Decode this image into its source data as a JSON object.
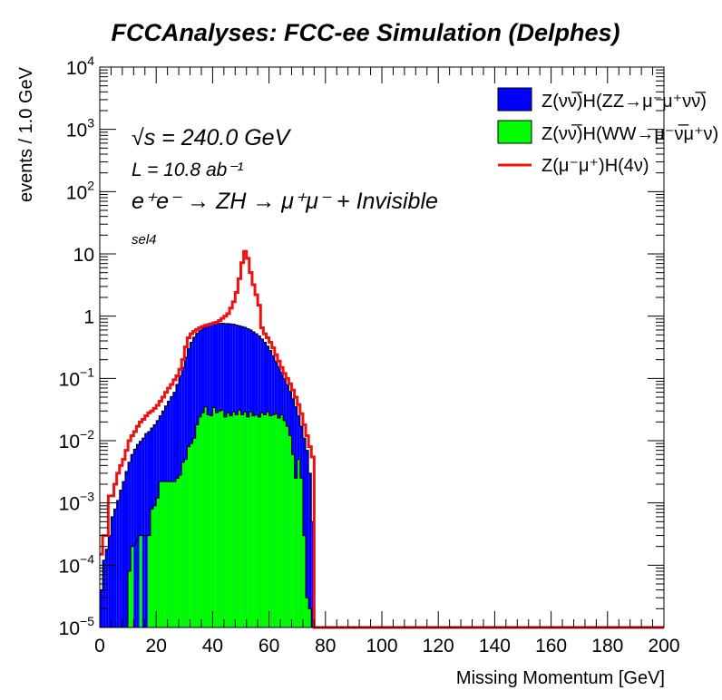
{
  "header": {
    "title": "FCCAnalyses: FCC-ee Simulation (Delphes)"
  },
  "annotations": {
    "sqrt_s": "√s = 240.0 GeV",
    "lumi": "L = 10.8 ab⁻¹",
    "process": "e⁺e⁻ → ZH → μ⁺μ⁻ + Invisible",
    "selection": "sel4"
  },
  "colors": {
    "zz_fill": "#0000ff",
    "ww_fill": "#00ff00",
    "signal_line": "#ee1111"
  },
  "chart_data": {
    "type": "histogram",
    "title": "FCCAnalyses: FCC-ee Simulation (Delphes)",
    "xlabel": "Missing Momentum [GeV]",
    "ylabel": "events / 1.0 GeV",
    "xlim": [
      0,
      200
    ],
    "ylim": [
      1e-05,
      10000
    ],
    "yscale": "log",
    "bin_width": 1.0,
    "x_ticks": [
      "0",
      "20",
      "40",
      "60",
      "80",
      "100",
      "120",
      "140",
      "160",
      "180",
      "200"
    ],
    "y_ticks": [
      {
        "value": 1e-05,
        "base": "10",
        "exp": "−5"
      },
      {
        "value": 0.0001,
        "base": "10",
        "exp": "−4"
      },
      {
        "value": 0.001,
        "base": "10",
        "exp": "−3"
      },
      {
        "value": 0.01,
        "base": "10",
        "exp": "−2"
      },
      {
        "value": 0.1,
        "base": "10",
        "exp": "−1"
      },
      {
        "value": 1,
        "base": "1",
        "exp": ""
      },
      {
        "value": 10,
        "base": "10",
        "exp": ""
      },
      {
        "value": 100,
        "base": "10",
        "exp": "2"
      },
      {
        "value": 1000,
        "base": "10",
        "exp": "3"
      },
      {
        "value": 10000,
        "base": "10",
        "exp": "4"
      }
    ],
    "legend_position": "top-right",
    "legend": [
      {
        "label": "Z(νν̅)H(ZZ→μ⁻μ⁺νν̅)",
        "style": "fill",
        "color": "#0000ff"
      },
      {
        "label": "Z(νν̅)H(WW→μ⁻ν̅μ⁺ν)",
        "style": "fill",
        "color": "#00ff00"
      },
      {
        "label": "Z(μ⁻μ⁺)H(4ν)",
        "style": "line",
        "color": "#ee1111"
      }
    ],
    "series": [
      {
        "name": "Z(νν̅)H(ZZ→μ⁻μ⁺νν̅)",
        "kind": "stack-filled",
        "bins": [
          [
            1,
            4e-05
          ],
          [
            2,
            0.00012
          ],
          [
            3,
            0.00018
          ],
          [
            4,
            0.0003
          ],
          [
            5,
            0.0006
          ],
          [
            6,
            0.0008
          ],
          [
            7,
            0.0011
          ],
          [
            8,
            0.0016
          ],
          [
            9,
            0.0022
          ],
          [
            10,
            0.0032
          ],
          [
            11,
            0.0045
          ],
          [
            12,
            0.006
          ],
          [
            13,
            0.0073
          ],
          [
            14,
            0.0087
          ],
          [
            15,
            0.0098
          ],
          [
            16,
            0.011
          ],
          [
            17,
            0.013
          ],
          [
            18,
            0.014
          ],
          [
            19,
            0.016
          ],
          [
            20,
            0.018
          ],
          [
            21,
            0.021
          ],
          [
            22,
            0.025
          ],
          [
            23,
            0.03
          ],
          [
            24,
            0.036
          ],
          [
            25,
            0.043
          ],
          [
            26,
            0.051
          ],
          [
            27,
            0.06
          ],
          [
            28,
            0.08
          ],
          [
            29,
            0.11
          ],
          [
            30,
            0.15
          ],
          [
            31,
            0.22
          ],
          [
            32,
            0.3
          ],
          [
            33,
            0.38
          ],
          [
            34,
            0.46
          ],
          [
            35,
            0.53
          ],
          [
            36,
            0.59
          ],
          [
            37,
            0.64
          ],
          [
            38,
            0.68
          ],
          [
            39,
            0.72
          ],
          [
            40,
            0.74
          ],
          [
            41,
            0.76
          ],
          [
            42,
            0.77
          ],
          [
            43,
            0.77
          ],
          [
            44,
            0.77
          ],
          [
            45,
            0.76
          ],
          [
            46,
            0.76
          ],
          [
            47,
            0.75
          ],
          [
            48,
            0.74
          ],
          [
            49,
            0.72
          ],
          [
            50,
            0.7
          ],
          [
            51,
            0.68
          ],
          [
            52,
            0.66
          ],
          [
            53,
            0.63
          ],
          [
            54,
            0.6
          ],
          [
            55,
            0.56
          ],
          [
            56,
            0.52
          ],
          [
            57,
            0.48
          ],
          [
            58,
            0.43
          ],
          [
            59,
            0.38
          ],
          [
            60,
            0.33
          ],
          [
            61,
            0.28
          ],
          [
            62,
            0.23
          ],
          [
            63,
            0.19
          ],
          [
            64,
            0.155
          ],
          [
            65,
            0.125
          ],
          [
            66,
            0.1
          ],
          [
            67,
            0.08
          ],
          [
            68,
            0.062
          ],
          [
            69,
            0.047
          ],
          [
            70,
            0.035
          ],
          [
            71,
            0.025
          ],
          [
            72,
            0.017
          ],
          [
            73,
            0.011
          ],
          [
            74,
            0.007
          ],
          [
            75,
            0.003
          ],
          [
            76,
            0.0005
          ]
        ]
      },
      {
        "name": "Z(νν̅)H(WW→μ⁻ν̅μ⁺ν)",
        "kind": "stack-filled",
        "bins": [
          [
            11,
            8e-05
          ],
          [
            12,
            0.0002
          ],
          [
            15,
            0.0003
          ],
          [
            18,
            0.0003
          ],
          [
            19,
            0.0008
          ],
          [
            20,
            0.0009
          ],
          [
            21,
            0.0012
          ],
          [
            22,
            0.0022
          ],
          [
            23,
            0.0022
          ],
          [
            24,
            0.0022
          ],
          [
            25,
            0.0022
          ],
          [
            26,
            0.0022
          ],
          [
            27,
            0.0022
          ],
          [
            28,
            0.0025
          ],
          [
            29,
            0.0028
          ],
          [
            30,
            0.0045
          ],
          [
            31,
            0.005
          ],
          [
            32,
            0.008
          ],
          [
            33,
            0.009
          ],
          [
            34,
            0.011
          ],
          [
            35,
            0.018
          ],
          [
            36,
            0.024
          ],
          [
            37,
            0.028
          ],
          [
            38,
            0.035
          ],
          [
            39,
            0.026
          ],
          [
            40,
            0.025
          ],
          [
            41,
            0.034
          ],
          [
            42,
            0.028
          ],
          [
            43,
            0.03
          ],
          [
            44,
            0.031
          ],
          [
            45,
            0.024
          ],
          [
            46,
            0.028
          ],
          [
            47,
            0.025
          ],
          [
            48,
            0.029
          ],
          [
            49,
            0.026
          ],
          [
            50,
            0.031
          ],
          [
            51,
            0.026
          ],
          [
            52,
            0.029
          ],
          [
            53,
            0.024
          ],
          [
            54,
            0.029
          ],
          [
            55,
            0.025
          ],
          [
            56,
            0.026
          ],
          [
            57,
            0.024
          ],
          [
            58,
            0.028
          ],
          [
            59,
            0.026
          ],
          [
            60,
            0.029
          ],
          [
            61,
            0.025
          ],
          [
            62,
            0.026
          ],
          [
            63,
            0.027
          ],
          [
            64,
            0.023
          ],
          [
            65,
            0.026
          ],
          [
            66,
            0.021
          ],
          [
            67,
            0.017
          ],
          [
            68,
            0.012
          ],
          [
            69,
            0.006
          ],
          [
            70,
            0.0025
          ],
          [
            71,
            0.005
          ],
          [
            72,
            0.0025
          ],
          [
            73,
            0.0003
          ],
          [
            74,
            3e-05
          ],
          [
            75,
            2e-05
          ]
        ]
      },
      {
        "name": "Z(μ⁻μ⁺)H(4ν)",
        "kind": "line",
        "bins": [
          [
            1,
            0.00015
          ],
          [
            2,
            0.0003
          ],
          [
            3,
            0.0003
          ],
          [
            4,
            0.0013
          ],
          [
            5,
            0.0013
          ],
          [
            6,
            0.002
          ],
          [
            7,
            0.003
          ],
          [
            8,
            0.004
          ],
          [
            9,
            0.005
          ],
          [
            10,
            0.007
          ],
          [
            11,
            0.01
          ],
          [
            12,
            0.012
          ],
          [
            13,
            0.014
          ],
          [
            14,
            0.017
          ],
          [
            15,
            0.02
          ],
          [
            16,
            0.022
          ],
          [
            17,
            0.025
          ],
          [
            18,
            0.028
          ],
          [
            19,
            0.03
          ],
          [
            20,
            0.033
          ],
          [
            21,
            0.037
          ],
          [
            22,
            0.043
          ],
          [
            23,
            0.05
          ],
          [
            24,
            0.06
          ],
          [
            25,
            0.07
          ],
          [
            26,
            0.08
          ],
          [
            27,
            0.095
          ],
          [
            28,
            0.11
          ],
          [
            29,
            0.14
          ],
          [
            30,
            0.2
          ],
          [
            31,
            0.32
          ],
          [
            32,
            0.45
          ],
          [
            33,
            0.52
          ],
          [
            34,
            0.57
          ],
          [
            35,
            0.61
          ],
          [
            36,
            0.65
          ],
          [
            37,
            0.68
          ],
          [
            38,
            0.71
          ],
          [
            39,
            0.73
          ],
          [
            40,
            0.75
          ],
          [
            41,
            0.78
          ],
          [
            42,
            0.8
          ],
          [
            43,
            0.85
          ],
          [
            44,
            0.92
          ],
          [
            45,
            1.0
          ],
          [
            46,
            1.1
          ],
          [
            47,
            1.35
          ],
          [
            48,
            1.7
          ],
          [
            49,
            2.4
          ],
          [
            50,
            4.0
          ],
          [
            51,
            7.2
          ],
          [
            52,
            11.0
          ],
          [
            53,
            8.5
          ],
          [
            54,
            5.0
          ],
          [
            55,
            3.2
          ],
          [
            56,
            2.2
          ],
          [
            57,
            1.5
          ],
          [
            58,
            0.65
          ],
          [
            59,
            0.52
          ],
          [
            60,
            0.45
          ],
          [
            61,
            0.38
          ],
          [
            62,
            0.31
          ],
          [
            63,
            0.24
          ],
          [
            64,
            0.19
          ],
          [
            65,
            0.15
          ],
          [
            66,
            0.12
          ],
          [
            67,
            0.1
          ],
          [
            68,
            0.082
          ],
          [
            69,
            0.065
          ],
          [
            70,
            0.05
          ],
          [
            71,
            0.038
          ],
          [
            72,
            0.027
          ],
          [
            73,
            0.018
          ],
          [
            74,
            0.012
          ],
          [
            75,
            0.008
          ],
          [
            76,
            0.0055
          ],
          [
            77,
            1e-05
          ]
        ]
      }
    ]
  }
}
